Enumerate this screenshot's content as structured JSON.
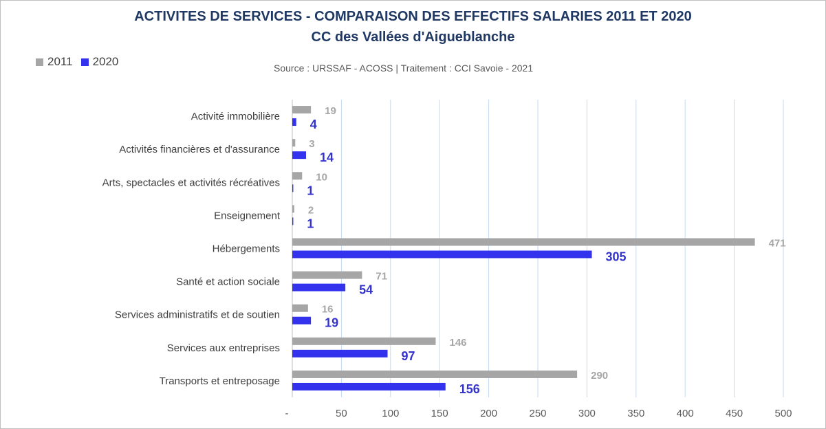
{
  "chart_data": {
    "type": "bar",
    "orientation": "horizontal",
    "title": "ACTIVITES DE SERVICES - COMPARAISON DES EFFECTIFS SALARIES 2011 ET 2020",
    "subtitle": "CC des Vallées d'Aigueblanche",
    "source": "Source  : URSSAF - ACOSS  |  Traitement : CCI Savoie - 2021",
    "categories": [
      "Activité immobilière",
      "Activités financières et d'assurance",
      "Arts, spectacles et activités récréatives",
      "Enseignement",
      "Hébergements",
      "Santé et action sociale",
      "Services administratifs et de soutien",
      "Services aux entreprises",
      "Transports et entreposage"
    ],
    "series": [
      {
        "name": "2011",
        "color": "#a6a6a6",
        "values": [
          19,
          3,
          10,
          2,
          471,
          71,
          16,
          146,
          290
        ]
      },
      {
        "name": "2020",
        "color": "#3333ee",
        "values": [
          4,
          14,
          1,
          1,
          305,
          54,
          19,
          97,
          156
        ]
      }
    ],
    "x_ticks": [
      "-",
      "50",
      "100",
      "150",
      "200",
      "250",
      "300",
      "350",
      "400",
      "450",
      "500"
    ],
    "xlim": [
      0,
      500
    ],
    "grid": true,
    "legend_position": "top-left"
  }
}
